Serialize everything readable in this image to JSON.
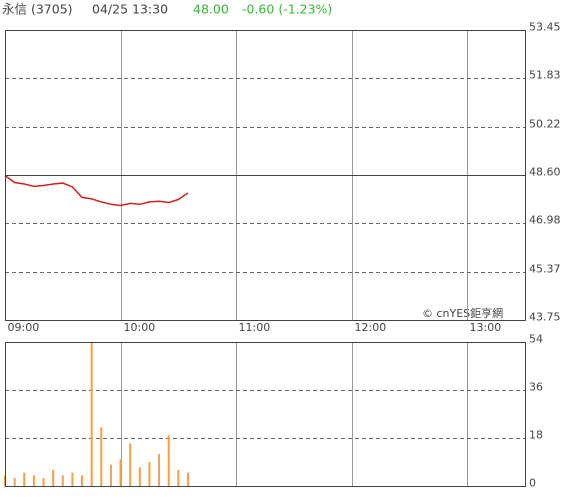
{
  "header": {
    "name": "永信 (3705)",
    "datetime": "04/25 13:30",
    "price": "48.00",
    "change": "-0.60 (-1.23%)"
  },
  "chart_data": [
    {
      "type": "line",
      "watermark": "© cnYES鉅亨網",
      "color": "#cc2222",
      "reference": 48.6,
      "x": [
        "09:00",
        "09:05",
        "09:10",
        "09:15",
        "09:20",
        "09:25",
        "09:30",
        "09:35",
        "09:40",
        "09:45",
        "09:50",
        "09:55",
        "10:00",
        "10:05",
        "10:10",
        "10:15",
        "10:20",
        "10:25",
        "10:30",
        "10:35"
      ],
      "values": [
        48.58,
        48.35,
        48.3,
        48.22,
        48.25,
        48.3,
        48.33,
        48.2,
        47.85,
        47.8,
        47.7,
        47.62,
        47.58,
        47.65,
        47.62,
        47.7,
        47.72,
        47.68,
        47.78,
        48.0
      ],
      "xlim": [
        "09:00",
        "13:30"
      ],
      "xticks": [
        "09:00",
        "10:00",
        "11:00",
        "12:00",
        "13:00"
      ],
      "ylim": [
        43.75,
        53.45
      ],
      "yticks": [
        43.75,
        45.37,
        46.98,
        {
          "value": 48.6,
          "label": "48.60"
        },
        50.22,
        51.83,
        53.45
      ]
    },
    {
      "type": "bar",
      "color": "#f5a04a",
      "x": [
        "09:00",
        "09:05",
        "09:10",
        "09:15",
        "09:20",
        "09:25",
        "09:30",
        "09:35",
        "09:40",
        "09:45",
        "09:50",
        "09:55",
        "10:00",
        "10:05",
        "10:10",
        "10:15",
        "10:20",
        "10:25",
        "10:30",
        "10:35"
      ],
      "values": [
        4,
        3,
        5,
        4,
        3,
        6,
        4,
        5,
        4,
        54,
        22,
        8,
        10,
        16,
        7,
        9,
        12,
        19,
        6,
        5
      ],
      "xlim": [
        "09:00",
        "13:30"
      ],
      "ylim": [
        0,
        54
      ],
      "yticks": [
        0,
        18,
        36,
        54
      ]
    }
  ]
}
